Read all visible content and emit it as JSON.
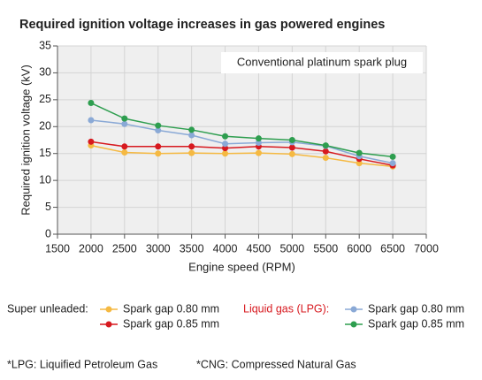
{
  "chart_data": {
    "type": "line",
    "title": "Required ignition voltage increases in gas powered engines",
    "annotation": "Conventional platinum spark plug",
    "x_label": "Engine speed (RPM)",
    "y_label": "Required ignition voltage (kV)",
    "x": [
      2000,
      2500,
      3000,
      3500,
      4000,
      4500,
      5000,
      5500,
      6000,
      6500
    ],
    "xlim": [
      1500,
      7000
    ],
    "xticks": [
      1500,
      2000,
      2500,
      3000,
      3500,
      4000,
      4500,
      5000,
      5500,
      6000,
      6500,
      7000
    ],
    "ylim": [
      0,
      35
    ],
    "yticks": [
      0,
      5,
      10,
      15,
      20,
      25,
      30,
      35
    ],
    "grid": true,
    "groups": [
      {
        "label": "Super unleaded:",
        "color": "#222222",
        "series": [
          {
            "name": "Spark gap 0.80 mm",
            "color": "#f5b942",
            "values": [
              16.5,
              15.2,
              15.0,
              15.1,
              15.0,
              15.1,
              14.9,
              14.2,
              13.2,
              12.6
            ]
          },
          {
            "name": "Spark gap 0.85 mm",
            "color": "#d7191f",
            "values": [
              17.2,
              16.3,
              16.3,
              16.3,
              16.0,
              16.3,
              16.1,
              15.4,
              14.0,
              12.8
            ]
          }
        ]
      },
      {
        "label": "Liquid gas (LPG):",
        "color": "#d7191f",
        "series": [
          {
            "name": "Spark gap 0.80 mm",
            "color": "#8aa9d6",
            "values": [
              21.2,
              20.5,
              19.3,
              18.4,
              16.8,
              17.0,
              17.1,
              16.4,
              14.5,
              13.2
            ]
          },
          {
            "name": "Spark gap 0.85 mm",
            "color": "#2e9e4f",
            "values": [
              24.4,
              21.5,
              20.2,
              19.4,
              18.2,
              17.8,
              17.5,
              16.5,
              15.1,
              14.4
            ]
          }
        ]
      }
    ],
    "footnotes": [
      "*LPG: Liquified Petroleum Gas",
      "*CNG: Compressed Natural Gas"
    ]
  }
}
